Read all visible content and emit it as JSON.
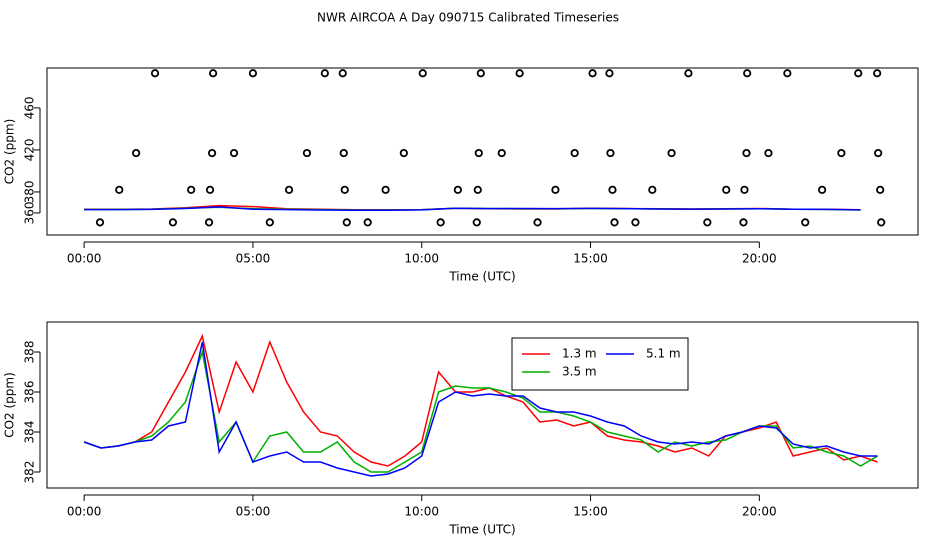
{
  "chart_data": [
    {
      "type": "line",
      "title": "NWR AIRCOA A  Day 090715  Calibrated Timeseries",
      "xlabel": "Time (UTC)",
      "ylabel": "CO2 (ppm)",
      "xlim": [
        -1.1,
        24.7
      ],
      "xticks": [
        {
          "value": 0,
          "label": "00:00"
        },
        {
          "value": 5,
          "label": "05:00"
        },
        {
          "value": 10,
          "label": "10:00"
        },
        {
          "value": 15,
          "label": "15:00"
        },
        {
          "value": 20,
          "label": "20:00"
        }
      ],
      "ylim": [
        339,
        498
      ],
      "yticks": [
        360,
        380,
        420,
        460
      ],
      "series": [
        {
          "type": "scatter",
          "color": "#000000",
          "x": [
            2.1,
            3.82,
            5.0,
            7.13,
            7.66,
            10.03,
            11.75,
            12.9,
            15.06,
            15.56,
            17.9,
            19.64,
            20.83,
            22.93,
            23.49,
            1.54,
            3.79,
            4.44,
            6.6,
            7.69,
            9.47,
            11.69,
            12.37,
            14.53,
            15.59,
            17.4,
            19.62,
            20.27,
            22.43,
            23.52,
            1.04,
            3.17,
            3.73,
            6.07,
            7.72,
            8.93,
            11.07,
            11.66,
            13.96,
            15.65,
            16.83,
            19.02,
            19.56,
            21.86,
            23.58,
            0.47,
            2.63,
            3.7,
            5.5,
            7.78,
            8.4,
            10.56,
            11.63,
            13.43,
            15.71,
            16.33,
            18.46,
            19.53,
            21.36,
            23.61
          ],
          "values": [
            493,
            493,
            493,
            493,
            493,
            493,
            493,
            493,
            493,
            493,
            493,
            493,
            493,
            493,
            493,
            417,
            417,
            417,
            417,
            417,
            417,
            417,
            417,
            417,
            417,
            417,
            417,
            417,
            417,
            417,
            382,
            382,
            382,
            382,
            382,
            382,
            382,
            382,
            382,
            382,
            382,
            382,
            382,
            382,
            382,
            351,
            351,
            351,
            351,
            351,
            351,
            351,
            351,
            351,
            351,
            351,
            351,
            351,
            351,
            351
          ]
        },
        {
          "color": "#ff0000",
          "x": [
            0,
            1,
            2,
            3,
            4,
            5,
            6,
            7,
            8,
            9,
            10,
            11,
            12,
            13,
            14,
            15,
            16,
            17,
            18,
            19,
            20,
            21,
            22,
            23
          ],
          "values": [
            363.5,
            363.5,
            363.8,
            365,
            367,
            366,
            364,
            363.5,
            363,
            363,
            363.2,
            364.5,
            364,
            363.8,
            363.8,
            364.5,
            364.2,
            364,
            363.8,
            364,
            364.2,
            363.6,
            363.5,
            363
          ]
        },
        {
          "color": "#00b000",
          "x": [
            0,
            1,
            2,
            3,
            4,
            5,
            6,
            7,
            8,
            9,
            10,
            11,
            12,
            13,
            14,
            15,
            16,
            17,
            18,
            19,
            20,
            21,
            22,
            23
          ],
          "values": [
            363.3,
            363.3,
            363.5,
            364.5,
            365.5,
            364,
            363.5,
            363.2,
            362.8,
            362.8,
            363,
            364.5,
            364.2,
            364,
            364,
            364.2,
            364,
            363.8,
            363.6,
            363.8,
            364,
            363.5,
            363.3,
            362.8
          ]
        },
        {
          "color": "#0000ff",
          "x": [
            0,
            1,
            2,
            3,
            4,
            5,
            6,
            7,
            8,
            9,
            10,
            11,
            12,
            13,
            14,
            15,
            16,
            17,
            18,
            19,
            20,
            21,
            22,
            23
          ],
          "values": [
            363.2,
            363.2,
            363.4,
            364.2,
            365.8,
            363.6,
            363.2,
            362.8,
            362.6,
            362.6,
            362.9,
            364.4,
            364.1,
            364.2,
            364.1,
            364.3,
            364.1,
            363.8,
            363.7,
            363.8,
            364,
            363.5,
            363.4,
            362.9
          ]
        }
      ]
    },
    {
      "type": "line",
      "xlabel": "Time (UTC)",
      "ylabel": "CO2 (ppm)",
      "legend": "top-right",
      "xlim": [
        -1.1,
        24.7
      ],
      "xticks": [
        {
          "value": 0,
          "label": "00:00"
        },
        {
          "value": 5,
          "label": "05:00"
        },
        {
          "value": 10,
          "label": "10:00"
        },
        {
          "value": 15,
          "label": "15:00"
        },
        {
          "value": 20,
          "label": "20:00"
        }
      ],
      "ylim": [
        381.2,
        389.5
      ],
      "yticks": [
        382,
        384,
        386,
        388
      ],
      "series": [
        {
          "name": "1.3 m",
          "color": "#ff0000",
          "x": [
            0,
            0.5,
            1,
            1.5,
            2,
            2.5,
            3,
            3.5,
            4,
            4.5,
            5,
            5.5,
            6,
            6.5,
            7,
            7.5,
            8,
            8.5,
            9,
            9.5,
            10,
            10.5,
            11,
            11.5,
            12,
            12.5,
            13,
            13.5,
            14,
            14.5,
            15,
            15.5,
            16,
            16.5,
            17,
            17.5,
            18,
            18.5,
            19,
            19.5,
            20,
            20.5,
            21,
            21.5,
            22,
            22.5,
            23,
            23.5
          ],
          "values": [
            383.5,
            383.2,
            383.3,
            383.5,
            384,
            385.5,
            387,
            388.8,
            385,
            387.5,
            386,
            388.5,
            386.5,
            385,
            384,
            383.8,
            383,
            382.5,
            382.3,
            382.8,
            383.5,
            387,
            386,
            386,
            386.2,
            385.8,
            385.5,
            384.5,
            384.6,
            384.3,
            384.5,
            383.8,
            383.6,
            383.5,
            383.3,
            383,
            383.2,
            382.8,
            383.8,
            384,
            384.2,
            384.5,
            382.8,
            383,
            383.2,
            382.6,
            382.8,
            382.5
          ]
        },
        {
          "name": "3.5 m",
          "color": "#00b000",
          "x": [
            0,
            0.5,
            1,
            1.5,
            2,
            2.5,
            3,
            3.5,
            4,
            4.5,
            5,
            5.5,
            6,
            6.5,
            7,
            7.5,
            8,
            8.5,
            9,
            9.5,
            10,
            10.5,
            11,
            11.5,
            12,
            12.5,
            13,
            13.5,
            14,
            14.5,
            15,
            15.5,
            16,
            16.5,
            17,
            17.5,
            18,
            18.5,
            19,
            19.5,
            20,
            20.5,
            21,
            21.5,
            22,
            22.5,
            23,
            23.5
          ],
          "values": [
            383.5,
            383.2,
            383.3,
            383.5,
            383.8,
            384.5,
            385.5,
            388,
            383.5,
            384.5,
            382.5,
            383.8,
            384,
            383,
            383,
            383.5,
            382.5,
            382,
            382,
            382.5,
            383,
            386,
            386.3,
            386.2,
            386.2,
            386,
            385.7,
            385,
            385,
            384.8,
            384.5,
            384,
            383.8,
            383.6,
            383,
            383.5,
            383.3,
            383.5,
            383.6,
            384,
            384.3,
            384.3,
            383.2,
            383.3,
            383,
            382.8,
            382.3,
            382.8
          ]
        },
        {
          "name": "5.1 m",
          "color": "#0000ff",
          "x": [
            0,
            0.5,
            1,
            1.5,
            2,
            2.5,
            3,
            3.5,
            4,
            4.5,
            5,
            5.5,
            6,
            6.5,
            7,
            7.5,
            8,
            8.5,
            9,
            9.5,
            10,
            10.5,
            11,
            11.5,
            12,
            12.5,
            13,
            13.5,
            14,
            14.5,
            15,
            15.5,
            16,
            16.5,
            17,
            17.5,
            18,
            18.5,
            19,
            19.5,
            20,
            20.5,
            21,
            21.5,
            22,
            22.5,
            23,
            23.5
          ],
          "values": [
            383.5,
            383.2,
            383.3,
            383.5,
            383.6,
            384.3,
            384.5,
            388.5,
            383,
            384.5,
            382.5,
            382.8,
            383,
            382.5,
            382.5,
            382.2,
            382,
            381.8,
            381.9,
            382.2,
            382.8,
            385.5,
            386,
            385.8,
            385.9,
            385.8,
            385.8,
            385.2,
            385,
            385,
            384.8,
            384.5,
            384.3,
            383.8,
            383.5,
            383.4,
            383.5,
            383.4,
            383.8,
            384,
            384.3,
            384.2,
            383.4,
            383.2,
            383.3,
            383,
            382.8,
            382.8
          ]
        }
      ]
    }
  ]
}
